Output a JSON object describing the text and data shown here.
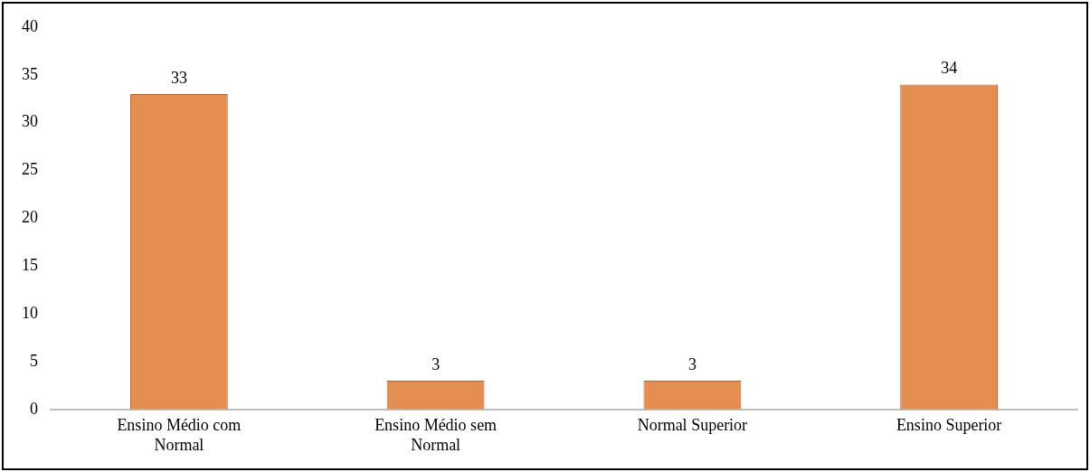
{
  "chart_data": {
    "type": "bar",
    "categories": [
      "Ensino Médio com Normal",
      "Ensino Médio sem Normal",
      "Normal Superior",
      "Ensino Superior"
    ],
    "values": [
      33,
      3,
      3,
      34
    ],
    "color": "#e58e52",
    "ylim": [
      0,
      40
    ],
    "yticks": [
      0,
      5,
      10,
      15,
      20,
      25,
      30,
      35,
      40
    ],
    "grid": false,
    "data_labels": true
  }
}
